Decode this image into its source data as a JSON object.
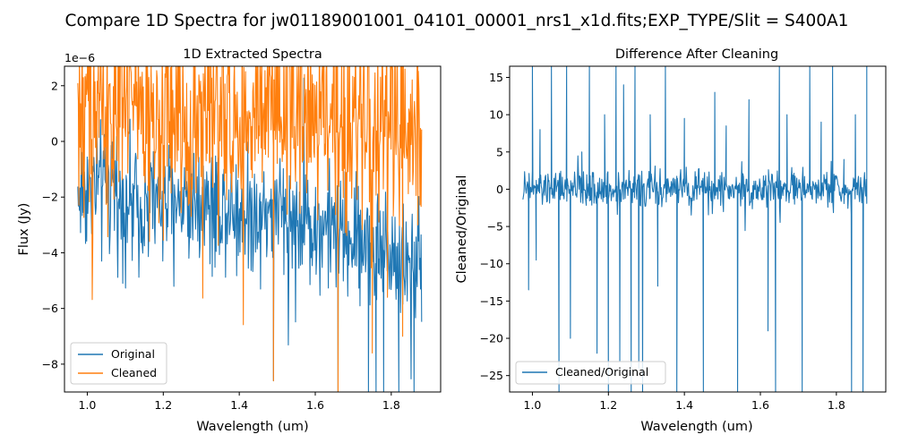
{
  "figure": {
    "suptitle": "Compare 1D Spectra for jw01189001001_04101_00001_nrs1_x1d.fits;EXP_TYPE/Slit = S400A1"
  },
  "colors": {
    "original": "#1f77b4",
    "cleaned": "#ff7f0e",
    "ratio": "#1f77b4",
    "axes": "#000000"
  },
  "chart_data": [
    {
      "type": "line",
      "title": "1D Extracted Spectra",
      "xlabel": "Wavelength (um)",
      "ylabel": "Flux (Jy)",
      "offset_text": "1e−6",
      "xlim": [
        0.94,
        1.93
      ],
      "ylim": [
        -9.0,
        2.7
      ],
      "y_scale_exponent": -6,
      "xticks": [
        1.0,
        1.2,
        1.4,
        1.6,
        1.8
      ],
      "xtick_labels": [
        "1.0",
        "1.2",
        "1.4",
        "1.6",
        "1.8"
      ],
      "yticks": [
        -8,
        -6,
        -4,
        -2,
        0,
        2
      ],
      "ytick_labels": [
        "−8",
        "−6",
        "−4",
        "−2",
        "0",
        "2"
      ],
      "legend_position": "lower-left",
      "x_range_data": [
        0.975,
        1.88
      ],
      "series": [
        {
          "name": "Original",
          "color": "#1f77b4",
          "trend_x": [
            0.975,
            1.0,
            1.05,
            1.1,
            1.2,
            1.3,
            1.4,
            1.5,
            1.6,
            1.7,
            1.8,
            1.85,
            1.88
          ],
          "trend_y": [
            -2.0,
            -1.6,
            -1.6,
            -2.2,
            -2.2,
            -2.0,
            -2.4,
            -2.6,
            -3.0,
            -3.5,
            -4.0,
            -4.5,
            -4.2
          ],
          "noise_amplitude": 1.1,
          "spikes": [
            {
              "x": 1.49,
              "y": -8.6
            },
            {
              "x": 1.66,
              "y": -9.0
            },
            {
              "x": 1.74,
              "y": -9.0
            },
            {
              "x": 1.76,
              "y": -9.0
            },
            {
              "x": 1.78,
              "y": -9.0
            },
            {
              "x": 1.82,
              "y": -9.0
            },
            {
              "x": 1.86,
              "y": -9.0
            }
          ]
        },
        {
          "name": "Cleaned",
          "color": "#ff7f0e",
          "trend_x": [
            0.975,
            1.0,
            1.2,
            1.4,
            1.6,
            1.8,
            1.88
          ],
          "trend_y": [
            1.3,
            1.3,
            1.0,
            0.8,
            0.9,
            0.4,
            0.8
          ],
          "noise_amplitude": 1.8,
          "spikes": [
            {
              "x": 1.49,
              "y": -8.6
            },
            {
              "x": 1.66,
              "y": -9.0
            },
            {
              "x": 1.75,
              "y": -7.6
            },
            {
              "x": 1.79,
              "y": -5.6
            },
            {
              "x": 1.83,
              "y": -7.0
            },
            {
              "x": 1.87,
              "y": -3.0
            }
          ]
        }
      ]
    },
    {
      "type": "line",
      "title": "Difference After Cleaning",
      "xlabel": "Wavelength (um)",
      "ylabel": "Cleaned/Original",
      "xlim": [
        0.94,
        1.93
      ],
      "ylim": [
        -27.2,
        16.5
      ],
      "xticks": [
        1.0,
        1.2,
        1.4,
        1.6,
        1.8
      ],
      "xtick_labels": [
        "1.0",
        "1.2",
        "1.4",
        "1.6",
        "1.8"
      ],
      "yticks": [
        -25,
        -20,
        -15,
        -10,
        -5,
        0,
        5,
        10,
        15
      ],
      "ytick_labels": [
        "−25",
        "−20",
        "−15",
        "−10",
        "−5",
        "0",
        "5",
        "10",
        "15"
      ],
      "legend_position": "lower-left",
      "x_range_data": [
        0.975,
        1.88
      ],
      "series": [
        {
          "name": "Cleaned/Original",
          "color": "#1f77b4",
          "baseline": 0,
          "noise_amplitude": 1.2,
          "spikes": [
            {
              "x": 0.99,
              "y": -13.5
            },
            {
              "x": 1.0,
              "y": 16.5
            },
            {
              "x": 1.01,
              "y": -9.5
            },
            {
              "x": 1.02,
              "y": 8.0
            },
            {
              "x": 1.05,
              "y": 16.5
            },
            {
              "x": 1.07,
              "y": -27.2
            },
            {
              "x": 1.09,
              "y": 16.5
            },
            {
              "x": 1.1,
              "y": -20.0
            },
            {
              "x": 1.13,
              "y": 5.0
            },
            {
              "x": 1.15,
              "y": 16.5
            },
            {
              "x": 1.17,
              "y": -22.0
            },
            {
              "x": 1.19,
              "y": 10.0
            },
            {
              "x": 1.2,
              "y": -27.2
            },
            {
              "x": 1.22,
              "y": 16.5
            },
            {
              "x": 1.23,
              "y": -23.0
            },
            {
              "x": 1.24,
              "y": 14.0
            },
            {
              "x": 1.26,
              "y": -27.2
            },
            {
              "x": 1.27,
              "y": 16.5
            },
            {
              "x": 1.28,
              "y": -24.0
            },
            {
              "x": 1.29,
              "y": -27.2
            },
            {
              "x": 1.31,
              "y": 10.0
            },
            {
              "x": 1.33,
              "y": -13.0
            },
            {
              "x": 1.35,
              "y": 16.5
            },
            {
              "x": 1.38,
              "y": -27.2
            },
            {
              "x": 1.4,
              "y": 9.5
            },
            {
              "x": 1.45,
              "y": -27.2
            },
            {
              "x": 1.48,
              "y": 13.0
            },
            {
              "x": 1.51,
              "y": 8.5
            },
            {
              "x": 1.54,
              "y": -27.2
            },
            {
              "x": 1.57,
              "y": 12.0
            },
            {
              "x": 1.62,
              "y": -19.0
            },
            {
              "x": 1.64,
              "y": -27.2
            },
            {
              "x": 1.65,
              "y": 16.5
            },
            {
              "x": 1.67,
              "y": 10.0
            },
            {
              "x": 1.71,
              "y": -27.2
            },
            {
              "x": 1.73,
              "y": 16.5
            },
            {
              "x": 1.76,
              "y": 9.0
            },
            {
              "x": 1.79,
              "y": 16.5
            },
            {
              "x": 1.82,
              "y": 4.0
            },
            {
              "x": 1.84,
              "y": -27.2
            },
            {
              "x": 1.85,
              "y": 10.0
            },
            {
              "x": 1.87,
              "y": -27.2
            },
            {
              "x": 1.88,
              "y": 16.5
            }
          ]
        }
      ]
    }
  ]
}
